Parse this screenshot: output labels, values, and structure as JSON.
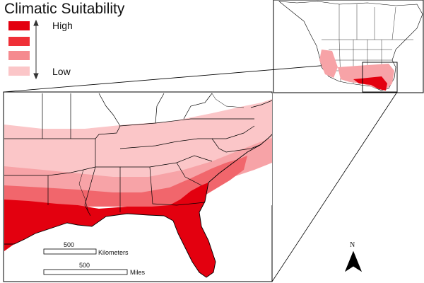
{
  "title": "Climatic Suitability",
  "legend": {
    "items": [
      {
        "level": 4,
        "color": "#e3000f"
      },
      {
        "level": 3,
        "color": "#ef2f37"
      },
      {
        "level": 2,
        "color": "#f58a8f"
      },
      {
        "level": 1,
        "color": "#fbc6c8"
      }
    ],
    "high_label": "High",
    "low_label": "Low",
    "arrow": "double-headed-vertical-arrow"
  },
  "scalebar": {
    "km_value": "500",
    "km_unit": "Kilometers",
    "mi_value": "500",
    "mi_unit": "Miles"
  },
  "north_arrow": {
    "label": "N"
  },
  "colors": {
    "outline": "#000000",
    "water": "#ffffff",
    "land": "#ffffff"
  }
}
